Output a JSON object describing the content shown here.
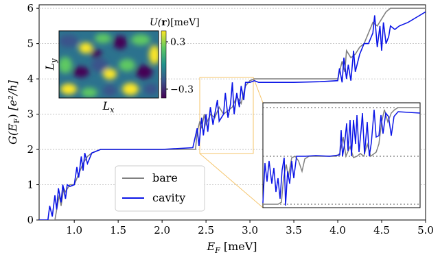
{
  "chart_data": {
    "type": "line",
    "xlabel_base": "E",
    "xlabel_sub": "F",
    "xlabel_unit": "[meV]",
    "ylabel_base": "G(E",
    "ylabel_sub": "F",
    "ylabel_close": ")",
    "ylabel_unit": "[e²/h]",
    "xlim": [
      0.6,
      5.0
    ],
    "ylim": [
      0,
      6.1
    ],
    "xticks": [
      "1.0",
      "1.5",
      "2.0",
      "2.5",
      "3.0",
      "3.5",
      "4.0",
      "4.5",
      "5.0"
    ],
    "yticks": [
      "0",
      "1",
      "2",
      "3",
      "4",
      "5",
      "6"
    ],
    "grid_y": true,
    "legend": {
      "position": "lower-center",
      "entries": [
        "bare",
        "cavity"
      ]
    },
    "colors": {
      "bare": "#808080",
      "cavity": "#0a14e6",
      "zoom_box": "#f5c46a",
      "grid": "#bbbbbb"
    },
    "series": [
      {
        "name": "bare",
        "x": [
          0.6,
          0.78,
          0.8,
          0.83,
          0.85,
          0.88,
          0.9,
          0.95,
          1.0,
          1.05,
          1.1,
          1.15,
          1.2,
          1.25,
          1.3,
          1.35,
          1.8,
          2.38,
          2.4,
          2.43,
          2.45,
          2.48,
          2.5,
          2.55,
          2.6,
          2.65,
          2.7,
          2.75,
          2.8,
          2.85,
          2.9,
          2.95,
          3.0,
          3.05,
          3.1,
          3.5,
          4.0,
          4.05,
          4.08,
          4.1,
          4.15,
          4.2,
          4.25,
          4.3,
          4.35,
          4.4,
          4.45,
          4.5,
          4.55,
          4.6,
          4.7,
          4.8,
          5.0
        ],
        "y": [
          0,
          0,
          0.3,
          0.7,
          0.4,
          0.9,
          0.8,
          1.0,
          1.0,
          1.3,
          1.6,
          1.8,
          1.9,
          1.95,
          2.0,
          2.0,
          2.0,
          2.0,
          2.5,
          2.8,
          2.6,
          3.0,
          2.7,
          3.0,
          2.9,
          3.2,
          3.0,
          3.1,
          3.2,
          3.5,
          3.3,
          3.8,
          3.95,
          4.0,
          4.0,
          4.0,
          4.0,
          4.5,
          4.2,
          4.8,
          4.6,
          4.7,
          4.9,
          5.0,
          5.3,
          5.6,
          5.5,
          5.7,
          5.9,
          6.0,
          6.0,
          6.0,
          6.0
        ]
      },
      {
        "name": "cavity",
        "x": [
          0.6,
          0.7,
          0.72,
          0.75,
          0.78,
          0.8,
          0.82,
          0.85,
          0.87,
          0.9,
          0.92,
          0.95,
          1.0,
          1.03,
          1.05,
          1.08,
          1.1,
          1.12,
          1.15,
          1.2,
          1.25,
          1.3,
          1.5,
          2.0,
          2.35,
          2.4,
          2.42,
          2.45,
          2.47,
          2.5,
          2.52,
          2.55,
          2.58,
          2.6,
          2.63,
          2.65,
          2.7,
          2.72,
          2.75,
          2.78,
          2.8,
          2.82,
          2.85,
          2.88,
          2.9,
          2.93,
          2.95,
          3.0,
          3.05,
          3.1,
          3.3,
          3.5,
          3.8,
          4.0,
          4.02,
          4.05,
          4.07,
          4.1,
          4.12,
          4.15,
          4.18,
          4.2,
          4.25,
          4.3,
          4.35,
          4.4,
          4.42,
          4.45,
          4.48,
          4.5,
          4.52,
          4.55,
          4.58,
          4.6,
          4.65,
          4.7,
          4.8,
          4.9,
          5.0
        ],
        "y": [
          0,
          0,
          0.4,
          0.1,
          0.7,
          0.3,
          0.9,
          0.5,
          1.0,
          0.6,
          1.0,
          0.95,
          1.0,
          1.5,
          1.2,
          1.8,
          1.4,
          1.9,
          1.6,
          1.9,
          1.95,
          2.0,
          2.0,
          2.0,
          2.05,
          2.6,
          2.1,
          2.9,
          2.4,
          3.0,
          2.5,
          3.2,
          2.7,
          3.0,
          3.4,
          2.8,
          3.0,
          3.6,
          2.9,
          3.3,
          3.9,
          3.0,
          3.6,
          3.2,
          3.8,
          3.4,
          3.9,
          3.9,
          3.95,
          3.9,
          3.9,
          3.9,
          3.92,
          3.95,
          4.3,
          3.9,
          4.6,
          4.0,
          4.4,
          3.95,
          4.8,
          4.2,
          4.7,
          5.0,
          5.0,
          5.3,
          5.8,
          4.9,
          5.5,
          4.8,
          5.6,
          5.0,
          5.2,
          5.5,
          5.4,
          5.5,
          5.6,
          5.75,
          5.9
        ]
      }
    ],
    "inset": {
      "title_base": "U(",
      "title_bold": "r",
      "title_close": ")[meV]",
      "xlabel_base": "L",
      "xlabel_sub": "x",
      "ylabel_base": "L",
      "ylabel_sub": "y",
      "colorbar_ticks": [
        "0.3",
        "−0.3"
      ]
    }
  }
}
